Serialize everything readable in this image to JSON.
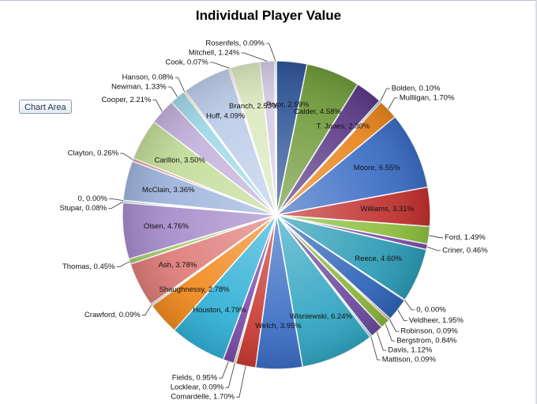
{
  "chart_area_label": "Chart Area",
  "chart_data": {
    "type": "pie",
    "title": "Individual Player Value",
    "label_format": "{name}, {value}%",
    "slices": [
      {
        "name": "Pryor",
        "value": 2.59,
        "color": "#2f5597"
      },
      {
        "name": "Calder",
        "value": 4.58,
        "color": "#6f9a3a"
      },
      {
        "name": "T. Jones",
        "value": 2.3,
        "color": "#5b3a86"
      },
      {
        "name": "Bolden",
        "value": 0.1,
        "color": "#2f8aa4"
      },
      {
        "name": "Mullligan",
        "value": 1.7,
        "color": "#e8841c"
      },
      {
        "name": "Moore",
        "value": 6.55,
        "color": "#3a6cc4"
      },
      {
        "name": "Williams",
        "value": 3.31,
        "color": "#c0302e"
      },
      {
        "name": "Ford",
        "value": 1.49,
        "color": "#8cbe3e"
      },
      {
        "name": "Criner",
        "value": 0.46,
        "color": "#7a4aa8"
      },
      {
        "name": "Reece",
        "value": 4.6,
        "color": "#2a9bb5"
      },
      {
        "name": "0",
        "value": 0.0,
        "color": "#f07f13"
      },
      {
        "name": "Veldheer",
        "value": 1.95,
        "color": "#2e63b8"
      },
      {
        "name": "Robinson",
        "value": 0.09,
        "color": "#b82a2a"
      },
      {
        "name": "Bergstrom",
        "value": 0.84,
        "color": "#88b43a"
      },
      {
        "name": "Davis",
        "value": 1.12,
        "color": "#6c4a9e"
      },
      {
        "name": "Mattison",
        "value": 0.09,
        "color": "#259bb8"
      },
      {
        "name": "Wisniewski",
        "value": 6.24,
        "color": "#31a5c2"
      },
      {
        "name": "Welch",
        "value": 3.95,
        "color": "#3a6cc4"
      },
      {
        "name": "Comardelle",
        "value": 1.7,
        "color": "#c83a32"
      },
      {
        "name": "Locklear",
        "value": 0.09,
        "color": "#88b43a"
      },
      {
        "name": "Fields",
        "value": 0.95,
        "color": "#7a4aa8"
      },
      {
        "name": "Houston",
        "value": 4.79,
        "color": "#2fb0d6"
      },
      {
        "name": "Shaughnessy",
        "value": 2.78,
        "color": "#f0891e"
      },
      {
        "name": "Crawford",
        "value": 0.09,
        "color": "#9ab2de"
      },
      {
        "name": "Ash",
        "value": 3.78,
        "color": "#de7b78"
      },
      {
        "name": "Thomas",
        "value": 0.45,
        "color": "#a3c86a"
      },
      {
        "name": "Olsen",
        "value": 4.76,
        "color": "#a58ac9"
      },
      {
        "name": "Stupar",
        "value": 0.08,
        "color": "#6fc4dc"
      },
      {
        "name": "0",
        "value": 0.0,
        "color": "#f5a35a"
      },
      {
        "name": "McClain",
        "value": 3.36,
        "color": "#9db3dc"
      },
      {
        "name": "Clayton",
        "value": 0.26,
        "color": "#e09996"
      },
      {
        "name": "Carillon",
        "value": 3.5,
        "color": "#c2dc98"
      },
      {
        "name": "Cooper",
        "value": 2.21,
        "color": "#c3b0dc"
      },
      {
        "name": "Newman",
        "value": 1.33,
        "color": "#9fd8e8"
      },
      {
        "name": "Hanson",
        "value": 0.08,
        "color": "#f7c08e"
      },
      {
        "name": "Huff",
        "value": 4.09,
        "color": "#bccce8"
      },
      {
        "name": "Cook",
        "value": 0.07,
        "color": "#ecbfbd"
      },
      {
        "name": "Branch",
        "value": 2.53,
        "color": "#dbe9bf"
      },
      {
        "name": "Mitchell",
        "value": 1.24,
        "color": "#d6cbe6"
      },
      {
        "name": "Rosenfels",
        "value": 0.09,
        "color": "#cbe9f2"
      }
    ]
  }
}
